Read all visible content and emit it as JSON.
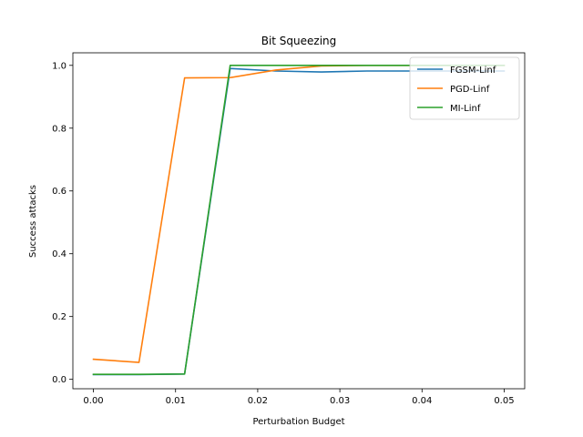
{
  "chart_data": {
    "type": "line",
    "title": "Bit Squeezing",
    "xlabel": "Perturbation Budget",
    "ylabel": "Success attacks",
    "xlim": [
      -0.0025,
      0.0525
    ],
    "ylim": [
      -0.03,
      1.04
    ],
    "xticks": [
      0.0,
      0.01,
      0.02,
      0.03,
      0.04,
      0.05
    ],
    "xtick_labels": [
      "0.00",
      "0.01",
      "0.02",
      "0.03",
      "0.04",
      "0.05"
    ],
    "yticks": [
      0.0,
      0.2,
      0.4,
      0.6,
      0.8,
      1.0
    ],
    "ytick_labels": [
      "0.0",
      "0.2",
      "0.4",
      "0.6",
      "0.8",
      "1.0"
    ],
    "grid": false,
    "legend_position": "top-right",
    "series": [
      {
        "name": "FGSM-Linf",
        "color": "#1f77b4",
        "x": [
          0.0,
          0.00555,
          0.0111,
          0.01665,
          0.0222,
          0.02775,
          0.0333,
          0.03885,
          0.0444,
          0.05
        ],
        "y": [
          0.015,
          0.015,
          0.017,
          0.99,
          0.982,
          0.979,
          0.982,
          0.982,
          0.982,
          0.982
        ]
      },
      {
        "name": "PGD-Linf",
        "color": "#ff7f0e",
        "x": [
          0.0,
          0.00555,
          0.0111,
          0.01665,
          0.0222,
          0.02775,
          0.0333,
          0.03885,
          0.0444,
          0.05
        ],
        "y": [
          0.064,
          0.054,
          0.96,
          0.961,
          0.985,
          0.998,
          1.0,
          1.0,
          1.0,
          1.0
        ]
      },
      {
        "name": "MI-Linf",
        "color": "#2ca02c",
        "x": [
          0.0,
          0.00555,
          0.0111,
          0.01665,
          0.0222,
          0.02775,
          0.0333,
          0.03885,
          0.0444,
          0.05
        ],
        "y": [
          0.016,
          0.016,
          0.017,
          1.0,
          1.0,
          1.0,
          1.0,
          1.0,
          1.0,
          1.0
        ]
      }
    ]
  }
}
